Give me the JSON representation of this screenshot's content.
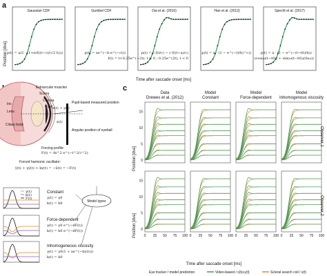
{
  "panel_a": {
    "letter": "a",
    "ylabel": "Position [dva]",
    "xlabel": "Time after saccade onset [ms]",
    "models": [
      {
        "title": "Gaussian CDF",
        "eq": "p(t) = a/2 · (1+erf((t−c)/(√2 b)))"
      },
      {
        "title": "Gumbel CDF",
        "eq": "p(t) = ae^(−b·e^(−ct))"
      },
      {
        "title": "Dai et al. (2016)",
        "eq": "p(t) = c·f(t/c) − c·f((t−a)/c)",
        "eq2": "f(t) = t+0.25e^(−2t), t ≥ 0 ; 0.25e^(2t), t < 0"
      },
      {
        "title": "Han et al. (2013)",
        "eq": "p(t) = a · (1 − e^(−(t/b)^c))"
      },
      {
        "title": "Specht et al. (2017)",
        "eq": "p(t) = a · (1 − e^(−(t−t0)/b)) ·",
        "eq2": "(cos(ω(t−t0)) + sin(ω(t−t0))/(bω))"
      }
    ]
  },
  "panel_b": {
    "letter": "b",
    "anatomy": [
      "Extraocular muscles",
      "Sclera",
      "Iris",
      "Cornea",
      "Lens",
      "Pupil",
      "Ciliary body"
    ],
    "pupil_measured": "Pupil-based measured position",
    "angular": "Angular position of eyeball",
    "xy": "x(t) + y(t)",
    "x": "x(t)",
    "forcing_title": "Forcing profile:",
    "forcing_eq": "F(t) = At^2 e^(−t^2/τ^2)",
    "oscillator_title": "Forced harmonic oscillator:",
    "oscillator_eq": "ÿ(t) + γẏ(t) + ky(t) = −ẍ(t) = −F(t)",
    "legend": [
      "γ(t)",
      "k(t)",
      "F(t)"
    ],
    "model_types": "Model types",
    "cases": [
      {
        "name": "Constant",
        "l1": "γ(t) = γ0",
        "l2": "k(t) = k0"
      },
      {
        "name": "Force-dependent",
        "l1": "γ(t) = γ0 e^(−dF(t))",
        "l2": "k(t) = k0 e^(−dF(t))"
      },
      {
        "name": "Inhomogeneous viscosity",
        "l1": "γ(t) = γ0(1 + ae^(−by(t)))",
        "l2": "k(t) = k0"
      }
    ]
  },
  "panel_c": {
    "letter": "c",
    "columns": [
      "Data Drewes et al. (2012)",
      "Model Constant",
      "Model Force-dependent",
      "Model Inhomogenous viscosity"
    ],
    "col_line1": [
      "Data",
      "Model",
      "Model",
      "Model"
    ],
    "col_line2": [
      "Drewes et al. (2012)",
      "Constant",
      "Force-dependent",
      "Inhomogenous viscosity"
    ],
    "rows": [
      "Observer 1",
      "Observer 2"
    ],
    "ylabel": "Position [dva]",
    "xlabel": "Time after saccade onset [ms]",
    "yticks": [
      "0",
      "5",
      "10",
      "15"
    ],
    "xticks": [
      "0",
      "25",
      "50",
      "75",
      "100"
    ],
    "legend_title": "Eye tracker / model prediction",
    "legend_items": [
      "Video-based / x(t)+y(t)",
      "Scleral search coil / x(t)"
    ]
  },
  "colors": {
    "green": "#3a9a5b",
    "orange": "#e8892b",
    "purple": "#8e5bb5",
    "dark": "#111111"
  }
}
